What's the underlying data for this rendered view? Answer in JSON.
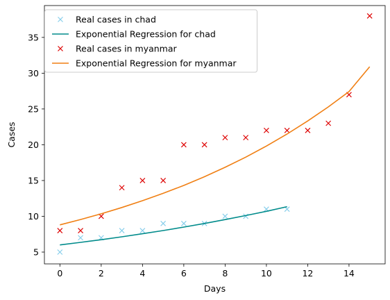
{
  "chart_data": {
    "type": "scatter",
    "xlabel": "Days",
    "ylabel": "Cases",
    "xlim": [
      -0.75,
      15.75
    ],
    "ylim": [
      3.35,
      39.45
    ],
    "xticks": [
      0,
      2,
      4,
      6,
      8,
      10,
      12,
      14
    ],
    "yticks": [
      5,
      10,
      15,
      20,
      25,
      30,
      35
    ],
    "grid": false,
    "legend_position": "top-left",
    "series": [
      {
        "name": "Real cases in chad",
        "kind": "points",
        "marker": "x",
        "color": "#87ceeb",
        "x": [
          0,
          1,
          2,
          3,
          4,
          5,
          6,
          7,
          8,
          9,
          10,
          11
        ],
        "y": [
          5,
          7,
          7,
          8,
          8,
          9,
          9,
          9,
          10,
          10,
          11,
          11
        ]
      },
      {
        "name": "Exponential Regression for chad",
        "kind": "line",
        "color": "#008b8b",
        "x": [
          0,
          1,
          2,
          3,
          4,
          5,
          6,
          7,
          8,
          9,
          10,
          11
        ],
        "y": [
          6.0,
          6.36,
          6.73,
          7.13,
          7.56,
          8.01,
          8.49,
          9.0,
          9.54,
          10.1,
          10.7,
          11.35
        ]
      },
      {
        "name": "Real cases in myanmar",
        "kind": "points",
        "marker": "x",
        "color": "#dd0000",
        "x": [
          0,
          1,
          2,
          3,
          4,
          5,
          6,
          7,
          8,
          9,
          10,
          11,
          12,
          13,
          14,
          15
        ],
        "y": [
          8,
          8,
          10,
          14,
          15,
          15,
          20,
          20,
          21,
          21,
          22,
          22,
          22,
          23,
          27,
          38
        ]
      },
      {
        "name": "Exponential Regression for myanmar",
        "kind": "line",
        "color": "#f07f13",
        "x": [
          0,
          1,
          2,
          3,
          4,
          5,
          6,
          7,
          8,
          9,
          10,
          11,
          12,
          13,
          14,
          15
        ],
        "y": [
          8.8,
          9.55,
          10.35,
          11.23,
          12.18,
          13.21,
          14.32,
          15.53,
          16.85,
          18.27,
          19.82,
          21.5,
          23.32,
          25.29,
          27.43,
          30.9
        ]
      }
    ]
  }
}
